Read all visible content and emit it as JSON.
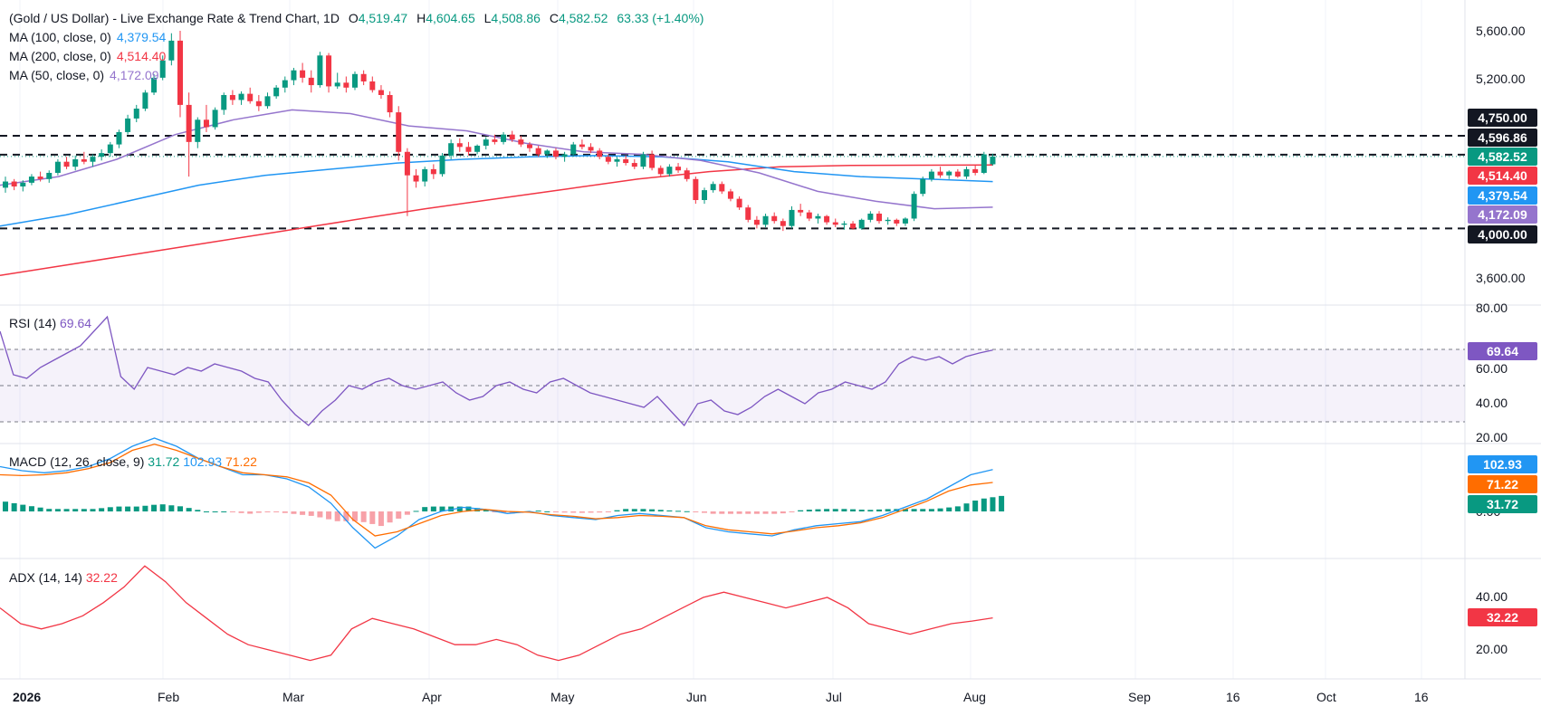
{
  "header": {
    "symbol": "(Gold / US Dollar) - Live Exchange Rate & Trend Chart, 1D",
    "open_key": "O",
    "open": "4,519.47",
    "high_key": "H",
    "high": "4,604.65",
    "low_key": "L",
    "low": "4,508.86",
    "close_key": "C",
    "close": "4,582.52",
    "change": "63.33 (+1.40%)",
    "ma100_label": "MA (100, close, 0)",
    "ma100_value": "4,379.54",
    "ma200_label": "MA (200, close, 0)",
    "ma200_value": "4,514.40",
    "ma50_label": "MA (50, close, 0)",
    "ma50_value": "4,172.09"
  },
  "price_axis": {
    "ticks": [
      "5,600.00",
      "5,200.00",
      "3,600.00"
    ],
    "badges": [
      {
        "text": "4,750.00",
        "color": "#131722"
      },
      {
        "text": "4,596.86",
        "color": "#131722"
      },
      {
        "text": "4,582.52",
        "color": "#089981"
      },
      {
        "text": "4,514.40",
        "color": "#f23645"
      },
      {
        "text": "4,379.54",
        "color": "#2196f3"
      },
      {
        "text": "4,172.09",
        "color": "#9575cd"
      },
      {
        "text": "4,000.00",
        "color": "#131722"
      }
    ]
  },
  "rsi": {
    "label": "RSI (14)",
    "value": "69.64",
    "ticks": [
      "80.00",
      "60.00",
      "40.00",
      "20.00"
    ],
    "badge": {
      "text": "69.64",
      "color": "#7e57c2"
    }
  },
  "macd": {
    "label": "MACD (12, 26, close, 9)",
    "hist_value": "31.72",
    "macd_value": "102.93",
    "signal_value": "71.22",
    "ticks": [
      "0.00"
    ],
    "badges": [
      {
        "text": "102.93",
        "color": "#2196f3"
      },
      {
        "text": "71.22",
        "color": "#ff6d00"
      },
      {
        "text": "31.72",
        "color": "#089981"
      }
    ]
  },
  "adx": {
    "label": "ADX (14, 14)",
    "value": "32.22",
    "ticks": [
      "40.00",
      "20.00"
    ],
    "badge": {
      "text": "32.22",
      "color": "#f23645"
    }
  },
  "time_axis": {
    "labels": [
      "2026",
      "Feb",
      "Mar",
      "Apr",
      "May",
      "Jun",
      "Jul",
      "Aug",
      "Sep",
      "16",
      "Oct",
      "16"
    ]
  },
  "colors": {
    "up": "#089981",
    "down": "#f23645",
    "ma100": "#2196f3",
    "ma200": "#f23645",
    "ma50": "#9575cd",
    "rsi": "#7e57c2",
    "macd": "#2196f3",
    "signal": "#ff6d00",
    "adx": "#f23645"
  },
  "chart_data": {
    "type": "candlestick",
    "ylim": [
      3300,
      5800
    ],
    "horizontal_levels": [
      4750,
      4596.86,
      4000
    ],
    "last_price": 4582.52,
    "candles": [
      [
        4330,
        4420,
        4290,
        4380
      ],
      [
        4380,
        4400,
        4310,
        4340
      ],
      [
        4340,
        4390,
        4300,
        4370
      ],
      [
        4370,
        4440,
        4350,
        4420
      ],
      [
        4420,
        4460,
        4380,
        4400
      ],
      [
        4400,
        4470,
        4370,
        4450
      ],
      [
        4450,
        4560,
        4430,
        4540
      ],
      [
        4540,
        4580,
        4480,
        4500
      ],
      [
        4500,
        4590,
        4470,
        4560
      ],
      [
        4560,
        4620,
        4520,
        4540
      ],
      [
        4540,
        4600,
        4500,
        4580
      ],
      [
        4580,
        4640,
        4550,
        4610
      ],
      [
        4610,
        4700,
        4580,
        4680
      ],
      [
        4680,
        4800,
        4650,
        4780
      ],
      [
        4780,
        4920,
        4760,
        4890
      ],
      [
        4890,
        5000,
        4860,
        4970
      ],
      [
        4970,
        5120,
        4950,
        5100
      ],
      [
        5100,
        5250,
        5080,
        5220
      ],
      [
        5220,
        5400,
        5200,
        5360
      ],
      [
        5360,
        5580,
        5320,
        5520
      ],
      [
        5520,
        5600,
        4900,
        5000
      ],
      [
        5000,
        5100,
        4420,
        4700
      ],
      [
        4700,
        4900,
        4650,
        4880
      ],
      [
        4880,
        5000,
        4780,
        4820
      ],
      [
        4820,
        4980,
        4800,
        4960
      ],
      [
        4960,
        5100,
        4920,
        5080
      ],
      [
        5080,
        5120,
        5000,
        5040
      ],
      [
        5040,
        5110,
        5000,
        5090
      ],
      [
        5090,
        5140,
        5010,
        5030
      ],
      [
        5030,
        5080,
        4950,
        4990
      ],
      [
        4990,
        5100,
        4970,
        5070
      ],
      [
        5070,
        5160,
        5050,
        5140
      ],
      [
        5140,
        5230,
        5100,
        5200
      ],
      [
        5200,
        5300,
        5160,
        5280
      ],
      [
        5280,
        5340,
        5180,
        5220
      ],
      [
        5220,
        5280,
        5100,
        5160
      ],
      [
        5160,
        5430,
        5140,
        5400
      ],
      [
        5400,
        5420,
        5100,
        5150
      ],
      [
        5150,
        5260,
        5130,
        5180
      ],
      [
        5180,
        5230,
        5100,
        5140
      ],
      [
        5140,
        5270,
        5120,
        5250
      ],
      [
        5250,
        5280,
        5160,
        5190
      ],
      [
        5190,
        5230,
        5100,
        5120
      ],
      [
        5120,
        5160,
        5050,
        5080
      ],
      [
        5080,
        5110,
        4900,
        4940
      ],
      [
        4940,
        4990,
        4550,
        4620
      ],
      [
        4620,
        4650,
        4100,
        4430
      ],
      [
        4430,
        4480,
        4330,
        4380
      ],
      [
        4380,
        4500,
        4340,
        4480
      ],
      [
        4480,
        4520,
        4400,
        4440
      ],
      [
        4440,
        4610,
        4420,
        4590
      ],
      [
        4590,
        4720,
        4560,
        4690
      ],
      [
        4690,
        4730,
        4620,
        4660
      ],
      [
        4660,
        4700,
        4590,
        4620
      ],
      [
        4620,
        4680,
        4600,
        4670
      ],
      [
        4670,
        4740,
        4640,
        4720
      ],
      [
        4720,
        4760,
        4680,
        4700
      ],
      [
        4700,
        4780,
        4680,
        4760
      ],
      [
        4760,
        4790,
        4700,
        4720
      ],
      [
        4720,
        4750,
        4660,
        4680
      ],
      [
        4680,
        4700,
        4620,
        4650
      ],
      [
        4650,
        4670,
        4580,
        4600
      ],
      [
        4600,
        4640,
        4570,
        4630
      ],
      [
        4630,
        4650,
        4560,
        4580
      ],
      [
        4580,
        4620,
        4540,
        4600
      ],
      [
        4600,
        4700,
        4580,
        4680
      ],
      [
        4680,
        4720,
        4640,
        4660
      ],
      [
        4660,
        4690,
        4610,
        4630
      ],
      [
        4630,
        4650,
        4560,
        4580
      ],
      [
        4580,
        4600,
        4520,
        4540
      ],
      [
        4540,
        4580,
        4500,
        4560
      ],
      [
        4560,
        4590,
        4510,
        4530
      ],
      [
        4530,
        4560,
        4480,
        4500
      ],
      [
        4500,
        4620,
        4480,
        4600
      ],
      [
        4600,
        4630,
        4470,
        4490
      ],
      [
        4490,
        4510,
        4420,
        4440
      ],
      [
        4440,
        4520,
        4420,
        4500
      ],
      [
        4500,
        4530,
        4450,
        4470
      ],
      [
        4470,
        4490,
        4380,
        4400
      ],
      [
        4400,
        4420,
        4200,
        4230
      ],
      [
        4230,
        4330,
        4200,
        4310
      ],
      [
        4310,
        4380,
        4290,
        4360
      ],
      [
        4360,
        4380,
        4280,
        4300
      ],
      [
        4300,
        4320,
        4220,
        4240
      ],
      [
        4240,
        4260,
        4150,
        4170
      ],
      [
        4170,
        4190,
        4050,
        4070
      ],
      [
        4070,
        4100,
        4000,
        4030
      ],
      [
        4030,
        4120,
        4010,
        4100
      ],
      [
        4100,
        4130,
        4040,
        4060
      ],
      [
        4060,
        4080,
        3980,
        4020
      ],
      [
        4020,
        4180,
        4000,
        4150
      ],
      [
        4150,
        4200,
        4100,
        4130
      ],
      [
        4130,
        4150,
        4060,
        4080
      ],
      [
        4080,
        4120,
        4040,
        4100
      ],
      [
        4100,
        4110,
        4030,
        4050
      ],
      [
        4050,
        4080,
        4010,
        4030
      ],
      [
        4030,
        4060,
        3990,
        4040
      ],
      [
        4040,
        4060,
        3990,
        4000
      ],
      [
        4000,
        4080,
        3990,
        4070
      ],
      [
        4070,
        4140,
        4050,
        4120
      ],
      [
        4120,
        4140,
        4040,
        4060
      ],
      [
        4060,
        4090,
        4030,
        4070
      ],
      [
        4070,
        4080,
        4020,
        4040
      ],
      [
        4040,
        4090,
        4020,
        4080
      ],
      [
        4080,
        4300,
        4060,
        4280
      ],
      [
        4280,
        4420,
        4260,
        4400
      ],
      [
        4400,
        4480,
        4380,
        4460
      ],
      [
        4460,
        4500,
        4410,
        4430
      ],
      [
        4430,
        4470,
        4400,
        4460
      ],
      [
        4460,
        4480,
        4410,
        4420
      ],
      [
        4420,
        4500,
        4400,
        4480
      ],
      [
        4480,
        4510,
        4430,
        4450
      ],
      [
        4450,
        4620,
        4440,
        4600
      ],
      [
        4519.47,
        4604.65,
        4508.86,
        4582.52
      ]
    ],
    "ma100": [
      4020,
      4110,
      4230,
      4350,
      4430,
      4480,
      4530,
      4560,
      4580,
      4590,
      4580,
      4540,
      4460,
      4420,
      4400,
      4379.54
    ],
    "ma200": [
      3620,
      3710,
      3800,
      3890,
      3980,
      4070,
      4160,
      4240,
      4320,
      4400,
      4460,
      4500,
      4510,
      4512,
      4514.4
    ],
    "ma50": [
      4350,
      4420,
      4560,
      4760,
      4880,
      4960,
      4930,
      4830,
      4790,
      4690,
      4620,
      4600,
      4550,
      4450,
      4300,
      4220,
      4160,
      4172.09
    ],
    "rsi": [
      80,
      56,
      54,
      60,
      64,
      68,
      72,
      80,
      88,
      55,
      48,
      60,
      58,
      56,
      60,
      58,
      62,
      60,
      58,
      54,
      52,
      42,
      34,
      28,
      36,
      42,
      50,
      48,
      52,
      54,
      50,
      48,
      50,
      52,
      46,
      42,
      44,
      50,
      52,
      48,
      46,
      52,
      54,
      50,
      46,
      44,
      42,
      40,
      38,
      44,
      36,
      28,
      40,
      42,
      36,
      34,
      38,
      44,
      48,
      44,
      40,
      46,
      48,
      52,
      50,
      48,
      52,
      62,
      66,
      64,
      66,
      62,
      66,
      68,
      69.64
    ],
    "macd_line": [
      110,
      100,
      95,
      100,
      110,
      130,
      160,
      180,
      160,
      130,
      110,
      90,
      90,
      80,
      60,
      20,
      -40,
      -90,
      -60,
      -20,
      0,
      10,
      5,
      -5,
      0,
      -10,
      -15,
      -20,
      -10,
      -5,
      -10,
      -15,
      -40,
      -50,
      -55,
      -60,
      -45,
      -35,
      -30,
      -25,
      -10,
      10,
      30,
      60,
      90,
      102.93
    ],
    "signal_line": [
      90,
      88,
      90,
      95,
      105,
      120,
      150,
      165,
      150,
      130,
      110,
      95,
      90,
      85,
      70,
      40,
      -20,
      -60,
      -50,
      -30,
      -10,
      0,
      5,
      0,
      -2,
      -8,
      -12,
      -18,
      -15,
      -10,
      -12,
      -15,
      -35,
      -45,
      -50,
      -55,
      -48,
      -40,
      -35,
      -28,
      -15,
      5,
      25,
      50,
      65,
      71.22
    ],
    "adx": [
      36,
      30,
      28,
      30,
      33,
      38,
      44,
      52,
      46,
      38,
      32,
      26,
      22,
      20,
      18,
      16,
      18,
      28,
      32,
      30,
      28,
      25,
      22,
      22,
      24,
      22,
      18,
      16,
      18,
      22,
      26,
      28,
      32,
      36,
      40,
      42,
      40,
      38,
      36,
      38,
      40,
      36,
      30,
      28,
      26,
      28,
      30,
      31,
      32.22
    ]
  }
}
